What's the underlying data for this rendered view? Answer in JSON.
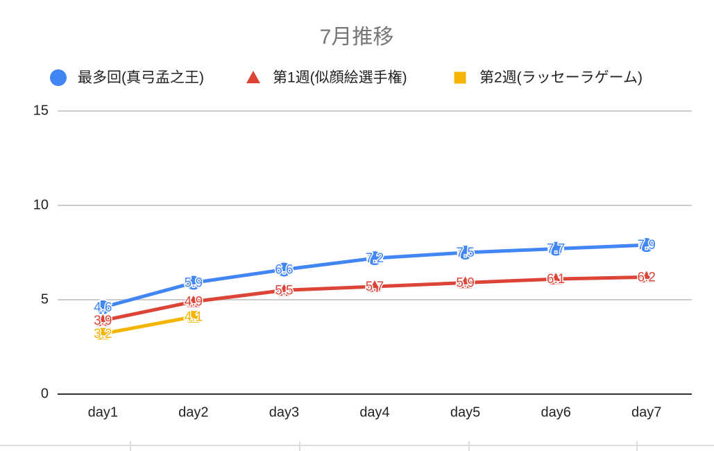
{
  "chart_data": {
    "type": "line",
    "title": "7月推移",
    "categories": [
      "day1",
      "day2",
      "day3",
      "day4",
      "day5",
      "day6",
      "day7"
    ],
    "series": [
      {
        "name": "最多回(真弓孟之王)",
        "color": "#4285f4",
        "marker": "circle",
        "values": [
          4.6,
          5.9,
          6.6,
          7.2,
          7.5,
          7.7,
          7.9
        ]
      },
      {
        "name": "第1週(似顔絵選手権)",
        "color": "#db4437",
        "marker": "triangle",
        "values": [
          3.9,
          4.9,
          5.5,
          5.7,
          5.9,
          6.1,
          6.2
        ]
      },
      {
        "name": "第2週(ラッセーラゲーム)",
        "color": "#f4b400",
        "marker": "square",
        "values": [
          3.2,
          4.1,
          null,
          null,
          null,
          null,
          null
        ]
      }
    ],
    "ylim": [
      0,
      15
    ],
    "yticks": [
      0,
      5,
      10,
      15
    ],
    "grid": true,
    "legend": "top"
  }
}
